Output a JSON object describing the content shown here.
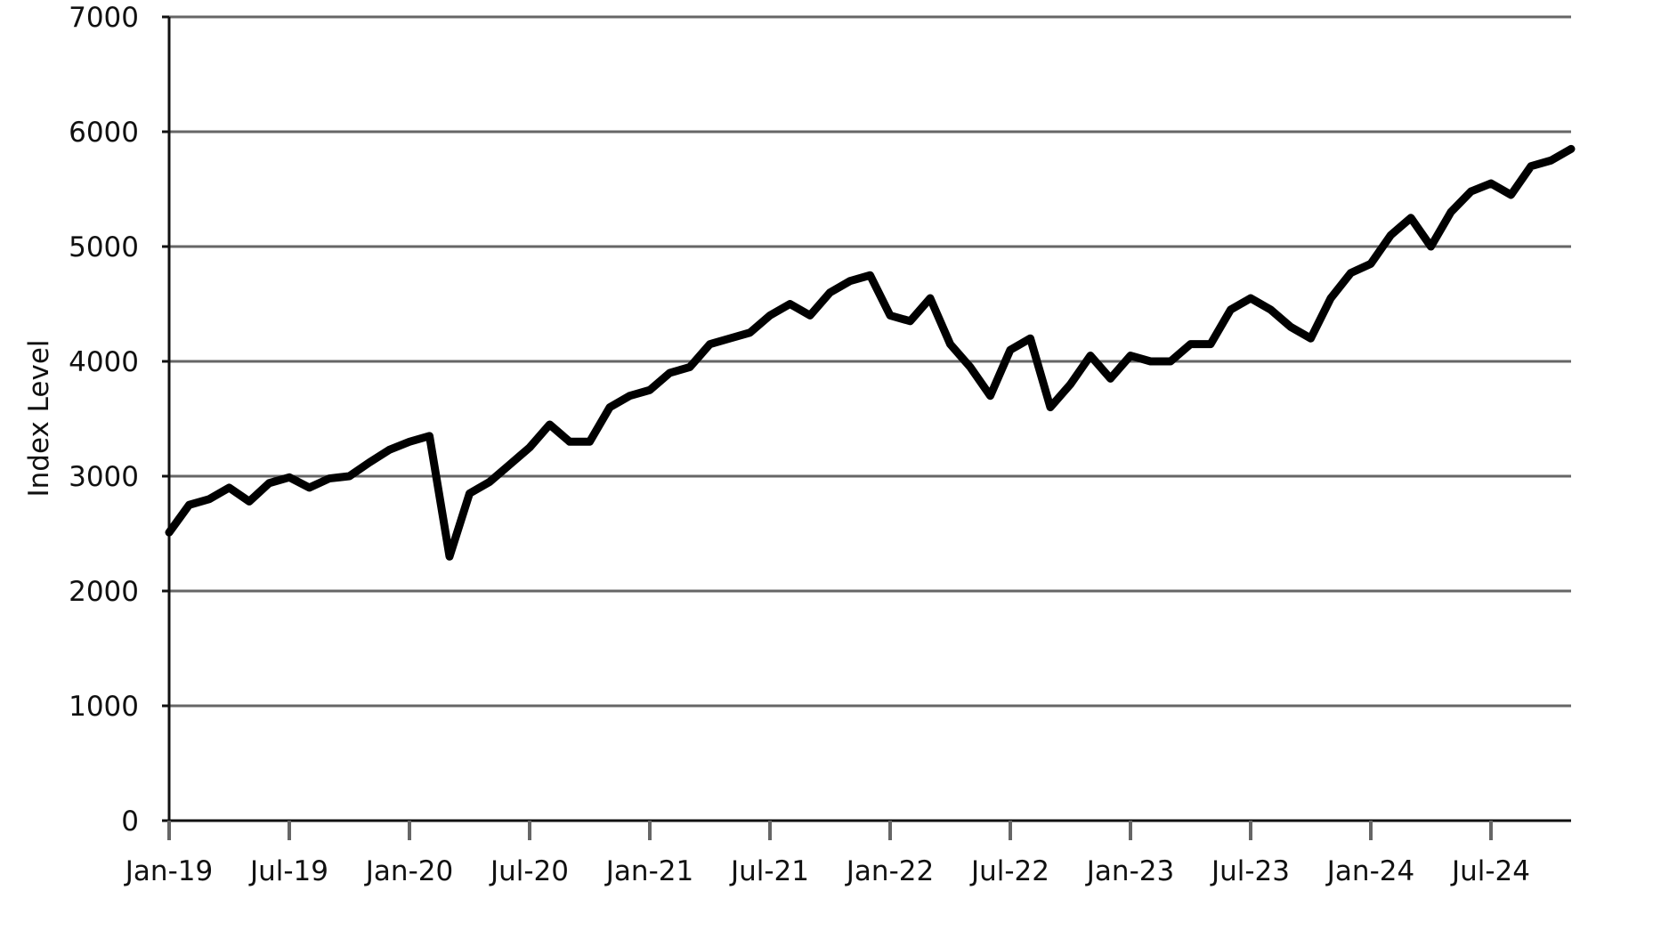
{
  "chart_data": {
    "type": "line",
    "y_label": "Index Level",
    "x": [
      "2019-01",
      "2019-02",
      "2019-03",
      "2019-04",
      "2019-05",
      "2019-06",
      "2019-07",
      "2019-08",
      "2019-09",
      "2019-10",
      "2019-11",
      "2019-12",
      "2020-01",
      "2020-02",
      "2020-03",
      "2020-04",
      "2020-05",
      "2020-06",
      "2020-07",
      "2020-08",
      "2020-09",
      "2020-10",
      "2020-11",
      "2020-12",
      "2021-01",
      "2021-02",
      "2021-03",
      "2021-04",
      "2021-05",
      "2021-06",
      "2021-07",
      "2021-08",
      "2021-09",
      "2021-10",
      "2021-11",
      "2021-12",
      "2022-01",
      "2022-02",
      "2022-03",
      "2022-04",
      "2022-05",
      "2022-06",
      "2022-07",
      "2022-08",
      "2022-09",
      "2022-10",
      "2022-11",
      "2022-12",
      "2023-01",
      "2023-02",
      "2023-03",
      "2023-04",
      "2023-05",
      "2023-06",
      "2023-07",
      "2023-08",
      "2023-09",
      "2023-10",
      "2023-11",
      "2023-12",
      "2024-01",
      "2024-02",
      "2024-03",
      "2024-04",
      "2024-05",
      "2024-06",
      "2024-07",
      "2024-08",
      "2024-09",
      "2024-10",
      "2024-11"
    ],
    "series": [
      {
        "name": "Index Level",
        "color": "#000000",
        "values": [
          2510,
          2750,
          2800,
          2900,
          2780,
          2940,
          2990,
          2900,
          2980,
          3000,
          3120,
          3230,
          3300,
          3350,
          2300,
          2850,
          2950,
          3100,
          3250,
          3450,
          3300,
          3300,
          3600,
          3700,
          3750,
          3900,
          3950,
          4150,
          4200,
          4250,
          4400,
          4500,
          4400,
          4600,
          4700,
          4750,
          4400,
          4350,
          4550,
          4150,
          3950,
          3700,
          4100,
          4200,
          3600,
          3800,
          4050,
          3850,
          4050,
          4000,
          4000,
          4150,
          4150,
          4450,
          4550,
          4450,
          4300,
          4200,
          4550,
          4770,
          4850,
          5100,
          5250,
          5000,
          5300,
          5480,
          5550,
          5450,
          5700,
          5750,
          5850
        ]
      }
    ],
    "xlim": [
      "2019-01",
      "2024-11"
    ],
    "xticks": [
      {
        "value": "2019-01",
        "label": "Jan-19"
      },
      {
        "value": "2019-07",
        "label": "Jul-19"
      },
      {
        "value": "2020-01",
        "label": "Jan-20"
      },
      {
        "value": "2020-07",
        "label": "Jul-20"
      },
      {
        "value": "2021-01",
        "label": "Jan-21"
      },
      {
        "value": "2021-07",
        "label": "Jul-21"
      },
      {
        "value": "2022-01",
        "label": "Jan-22"
      },
      {
        "value": "2022-07",
        "label": "Jul-22"
      },
      {
        "value": "2023-01",
        "label": "Jan-23"
      },
      {
        "value": "2023-07",
        "label": "Jul-23"
      },
      {
        "value": "2024-01",
        "label": "Jan-24"
      },
      {
        "value": "2024-07",
        "label": "Jul-24"
      }
    ],
    "ylim": [
      0,
      7000
    ],
    "yticks": [
      0,
      1000,
      2000,
      3000,
      4000,
      5000,
      6000,
      7000
    ],
    "grid": true
  }
}
